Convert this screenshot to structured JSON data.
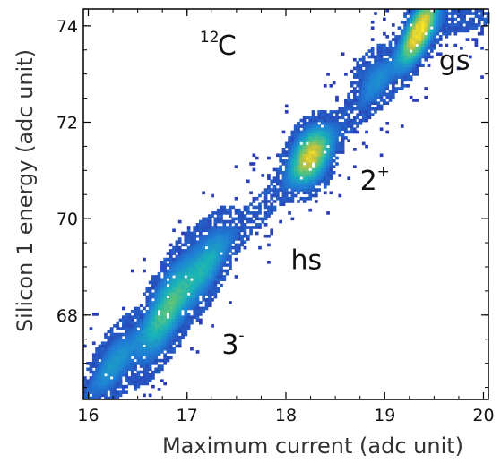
{
  "chart_data": {
    "type": "heatmap",
    "title": "",
    "xlabel": "Maximum current (adc unit)",
    "ylabel": "Silicon 1 energy (adc unit)",
    "xlim": [
      15.95,
      20.05
    ],
    "ylim": [
      66.25,
      74.35
    ],
    "x_ticks": [
      16,
      17,
      18,
      19,
      20
    ],
    "y_ticks": [
      68,
      70,
      72,
      74
    ],
    "x_tick_labels": [
      "16",
      "17",
      "18",
      "19",
      "20"
    ],
    "y_tick_labels": [
      "68",
      "70",
      "72",
      "74"
    ],
    "grid": false,
    "colormap": "parula",
    "colormap_colors": [
      "#2a3bb4",
      "#1f7fd6",
      "#19b3b8",
      "#5cc47a",
      "#c8c23c",
      "#fde725"
    ],
    "clusters": [
      {
        "label_main": "gs",
        "label_sup": "",
        "x": 19.35,
        "y": 73.9,
        "peak_count": 1.0
      },
      {
        "label_main": "2",
        "label_sup": "+",
        "x": 18.25,
        "y": 71.3,
        "peak_count": 0.85
      },
      {
        "label_main": "hs",
        "label_sup": "",
        "x": 17.35,
        "y": 69.4,
        "peak_count": 0.35
      },
      {
        "label_main": "3",
        "label_sup": "-",
        "x": 16.85,
        "y": 68.2,
        "peak_count": 0.55
      }
    ],
    "annotations": [
      {
        "id": "c12",
        "sup": "12",
        "main": "C",
        "x": 17.4,
        "y": 73.4
      },
      {
        "id": "gs",
        "sup": "",
        "main": "gs",
        "x": 19.55,
        "y": 73.1
      },
      {
        "id": "two-plus",
        "sup": "+",
        "main": "2",
        "x": 18.75,
        "y": 70.6
      },
      {
        "id": "hs",
        "sup": "",
        "main": "hs",
        "x": 18.05,
        "y": 68.95
      },
      {
        "id": "three-minus",
        "sup": "-",
        "main": "3",
        "x": 17.35,
        "y": 67.2
      }
    ]
  }
}
